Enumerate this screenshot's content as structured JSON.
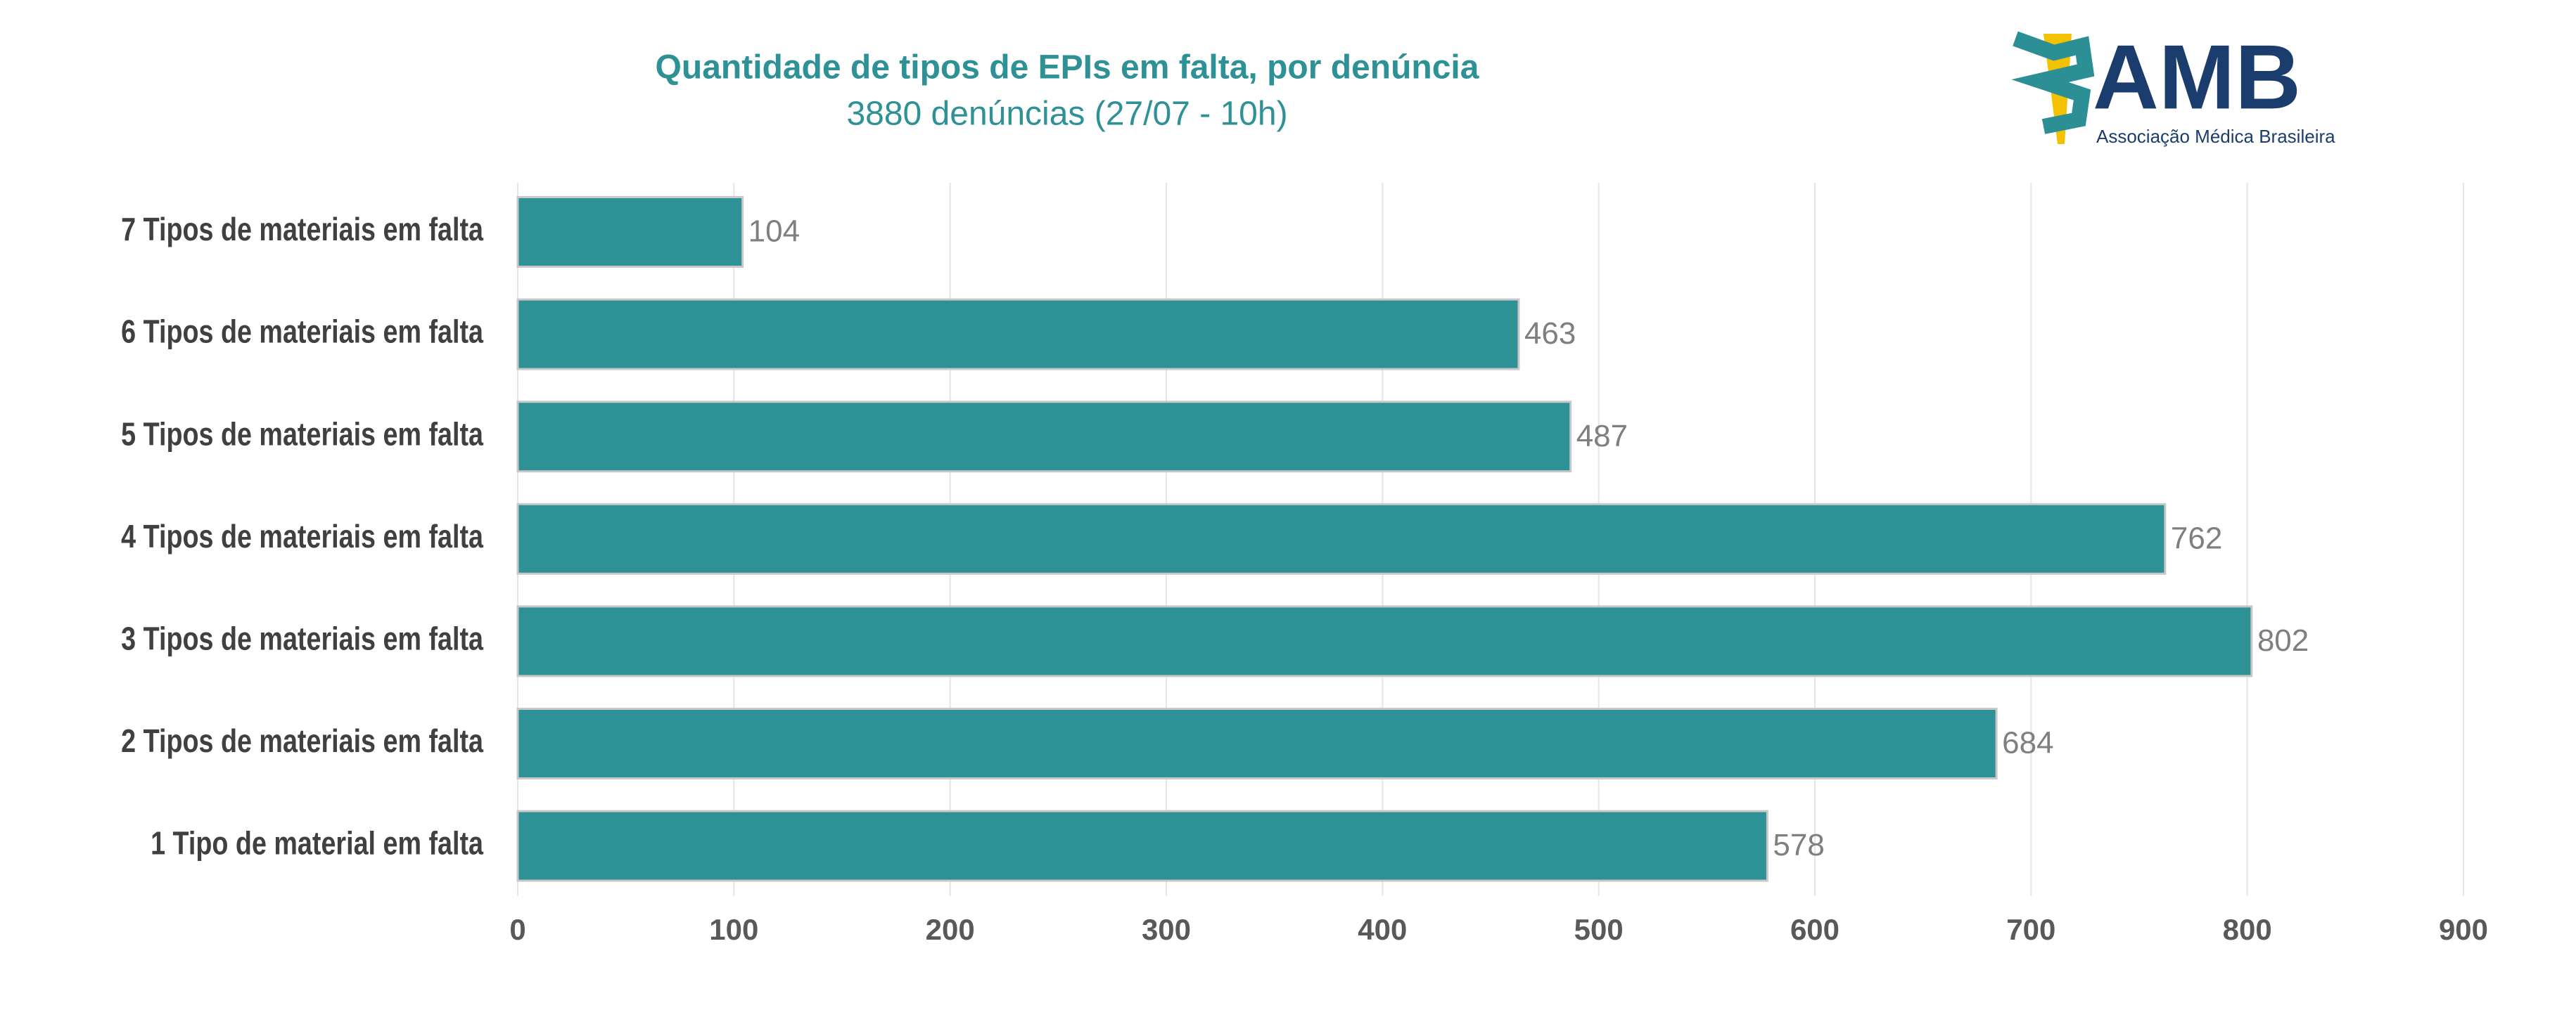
{
  "chart_data": {
    "type": "bar",
    "orientation": "horizontal",
    "title": "Quantidade de tipos de EPIs em falta, por denúncia",
    "subtitle": "3880 denúncias (27/07 - 10h)",
    "categories": [
      "7 Tipos de materiais em falta",
      "6 Tipos de materiais em falta",
      "5 Tipos de materiais em falta",
      "4 Tipos de materiais em falta",
      "3 Tipos de materiais em falta",
      "2 Tipos de materiais em falta",
      "1 Tipo de material em falta"
    ],
    "values": [
      104,
      463,
      487,
      762,
      802,
      684,
      578
    ],
    "color": "#2e9196",
    "xlim": [
      0,
      900
    ],
    "xticks": [
      0,
      100,
      200,
      300,
      400,
      500,
      600,
      700,
      800,
      900
    ],
    "grid": true
  },
  "logo": {
    "name": "AMB",
    "tagline": "Associação Médica Brasileira"
  }
}
